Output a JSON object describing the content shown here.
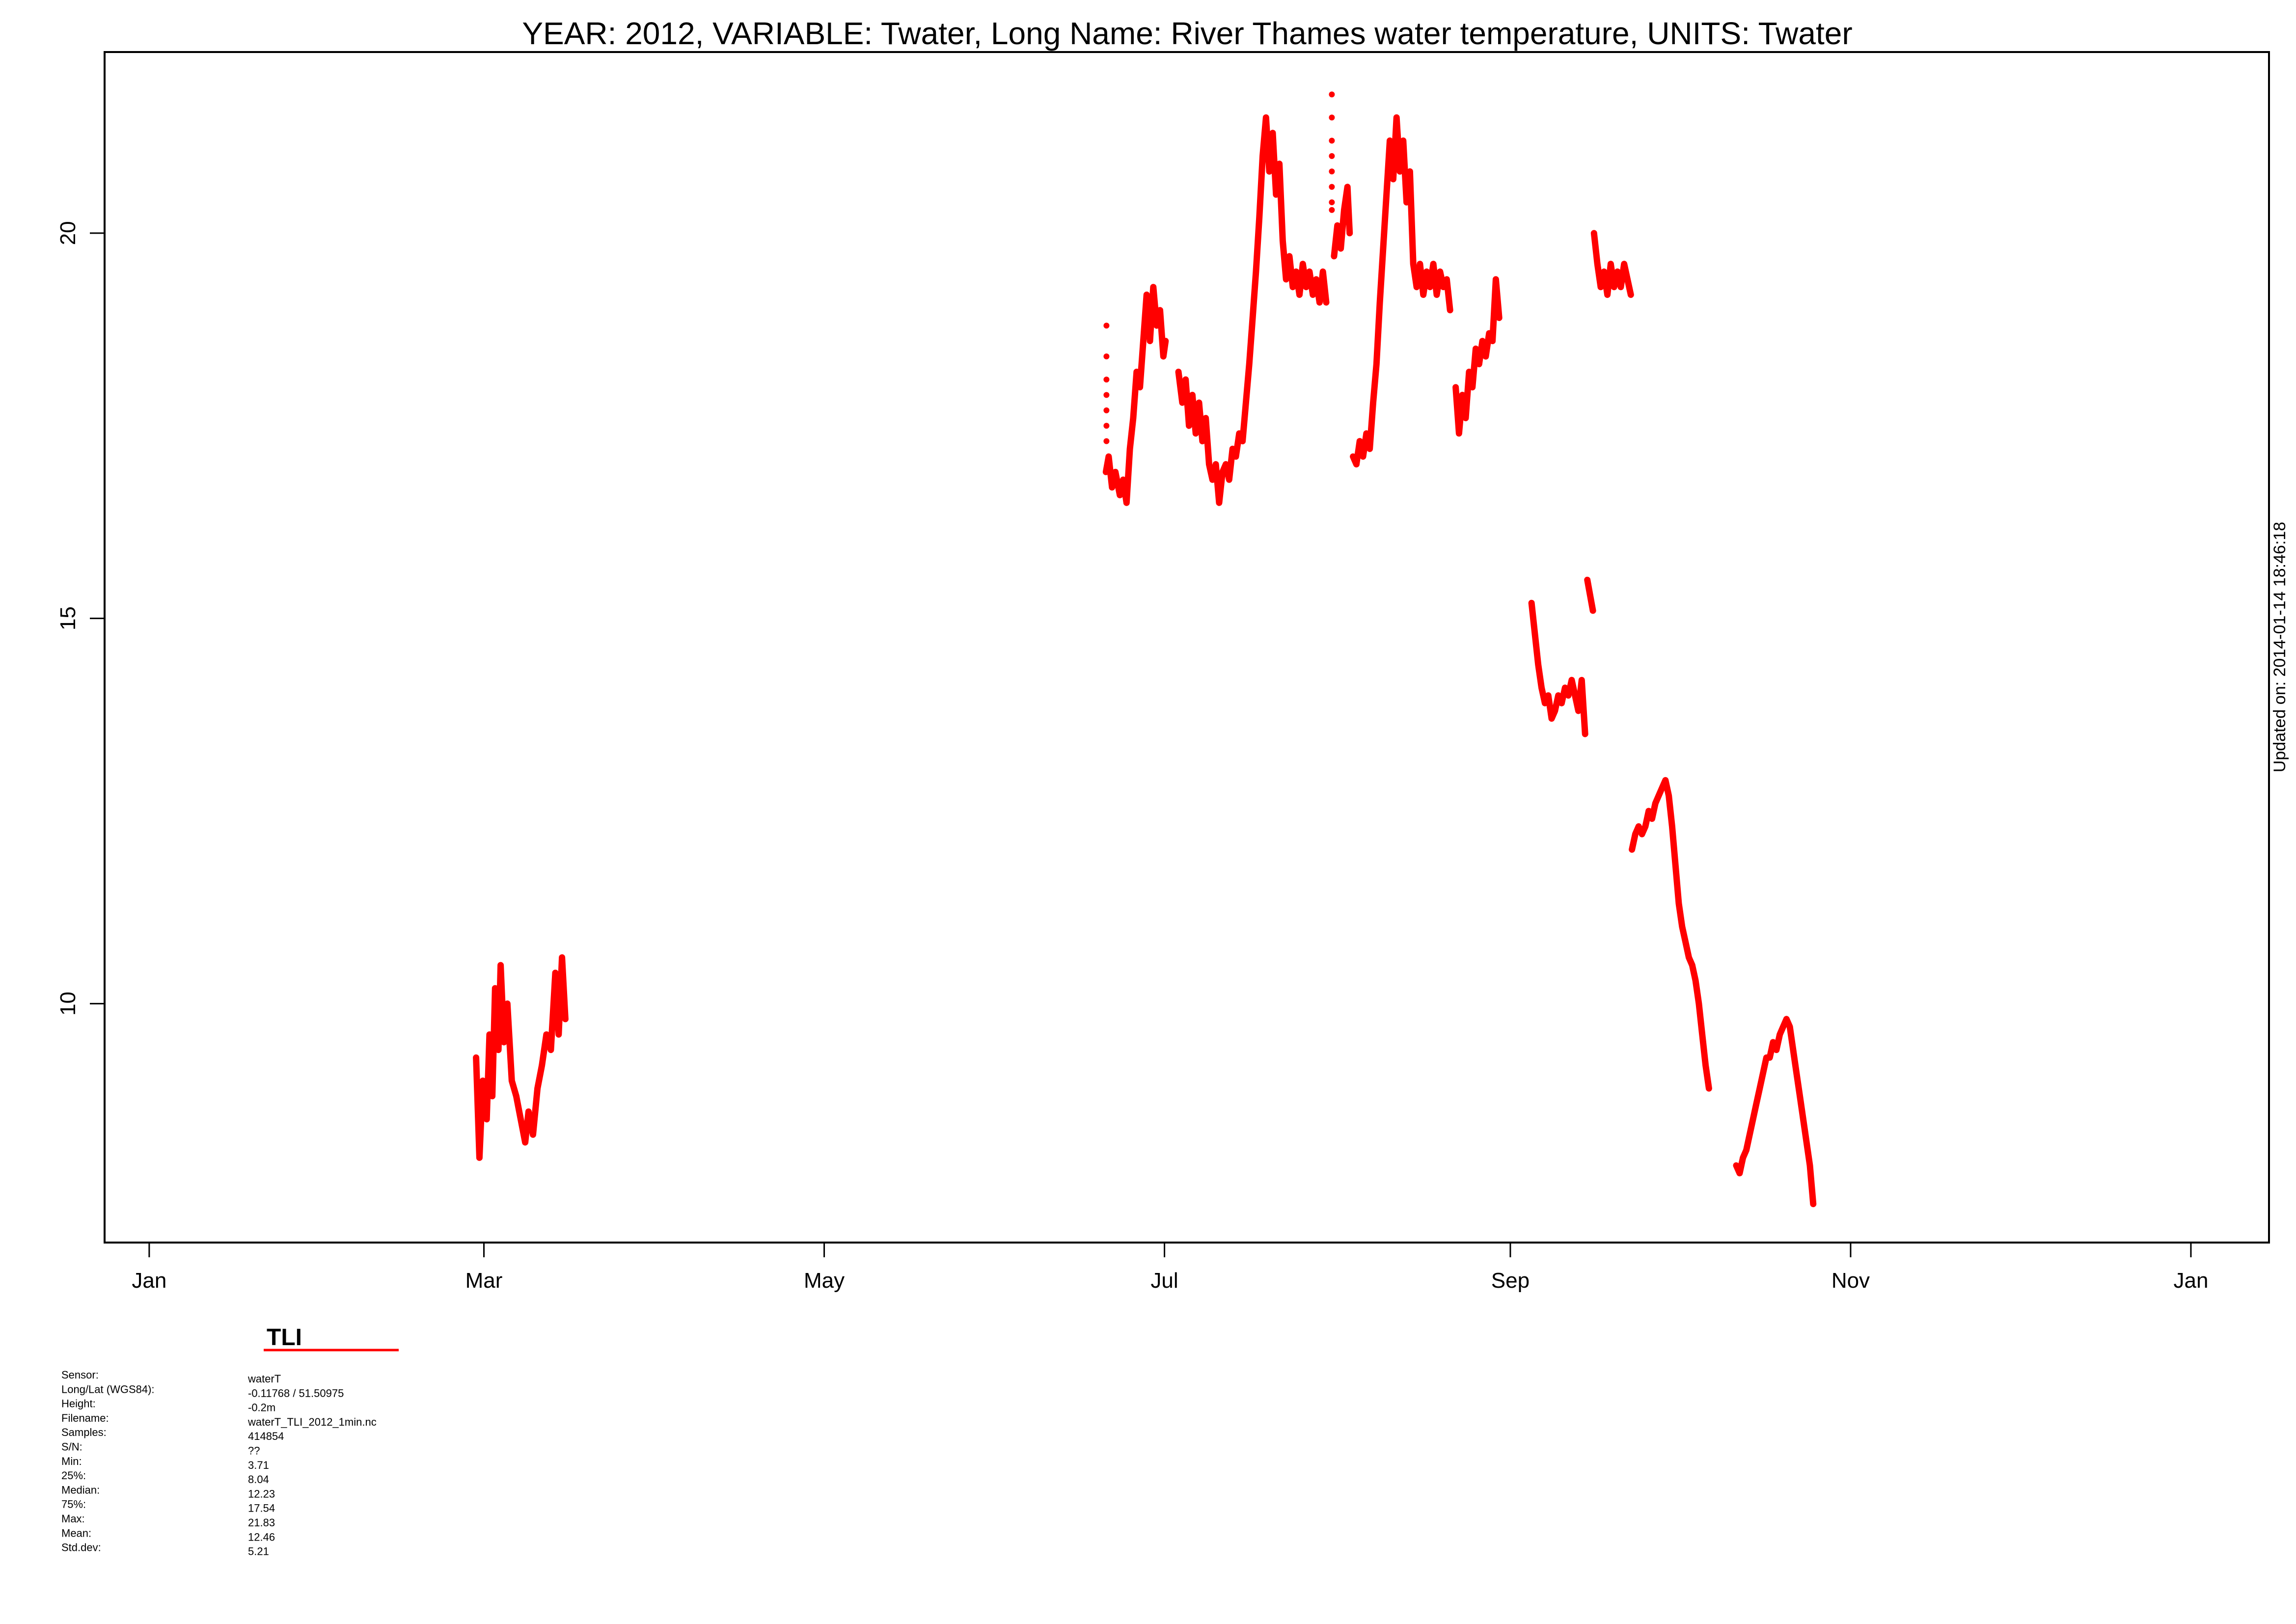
{
  "chart_data": {
    "type": "scatter",
    "title": "YEAR: 2012, VARIABLE: Twater, Long Name: River  Thames  water  temperature, UNITS: Twater",
    "xlabel": "",
    "ylabel": "",
    "updated_note": "Updated on: 2014-01-14 18:46:18",
    "xlim": [
      -8,
      380
    ],
    "ylim": [
      6.9,
      22.35
    ],
    "x_ticks": [
      {
        "day": 0,
        "label": "Jan"
      },
      {
        "day": 60,
        "label": "Mar"
      },
      {
        "day": 121,
        "label": "May"
      },
      {
        "day": 182,
        "label": "Jul"
      },
      {
        "day": 244,
        "label": "Sep"
      },
      {
        "day": 305,
        "label": "Nov"
      },
      {
        "day": 366,
        "label": "Jan"
      }
    ],
    "y_ticks": [
      {
        "value": 10,
        "label": "10"
      },
      {
        "value": 15,
        "label": "15"
      },
      {
        "value": 20,
        "label": "20"
      }
    ],
    "grid": false,
    "color": "#ff0000",
    "series": [
      {
        "name": "TLI",
        "segments": [
          [
            [
              58.6,
              9.3
            ],
            [
              59.2,
              8.0
            ],
            [
              59.8,
              9.0
            ],
            [
              60.5,
              8.5
            ],
            [
              61,
              9.6
            ],
            [
              61.5,
              8.8
            ],
            [
              62,
              10.2
            ],
            [
              62.6,
              9.4
            ],
            [
              63,
              10.5
            ],
            [
              63.6,
              9.5
            ],
            [
              64.2,
              10.0
            ],
            [
              65,
              9.0
            ],
            [
              65.8,
              8.8
            ],
            [
              66.6,
              8.5
            ],
            [
              67.4,
              8.2
            ],
            [
              68,
              8.6
            ],
            [
              68.8,
              8.3
            ],
            [
              69.6,
              8.9
            ],
            [
              70.4,
              9.2
            ],
            [
              71.2,
              9.6
            ],
            [
              72,
              9.4
            ],
            [
              72.8,
              10.4
            ],
            [
              73.4,
              9.6
            ],
            [
              74,
              10.6
            ],
            [
              74.6,
              9.8
            ]
          ],
          [
            [
              171.5,
              16.9
            ],
            [
              172,
              17.1
            ],
            [
              172.6,
              16.7
            ],
            [
              173.2,
              16.9
            ],
            [
              174,
              16.6
            ],
            [
              174.6,
              16.8
            ],
            [
              175.2,
              16.5
            ],
            [
              175.8,
              17.2
            ],
            [
              176.4,
              17.6
            ],
            [
              177,
              18.2
            ],
            [
              177.6,
              18.0
            ],
            [
              178.2,
              18.6
            ],
            [
              178.8,
              19.2
            ],
            [
              179.4,
              18.6
            ],
            [
              180,
              19.3
            ],
            [
              180.6,
              18.8
            ],
            [
              181.2,
              19.0
            ],
            [
              181.8,
              18.4
            ],
            [
              182.2,
              18.6
            ]
          ],
          [
            [
              184.5,
              18.2
            ],
            [
              185.2,
              17.8
            ],
            [
              185.8,
              18.1
            ],
            [
              186.4,
              17.5
            ],
            [
              187,
              17.9
            ],
            [
              187.6,
              17.4
            ],
            [
              188.2,
              17.8
            ],
            [
              188.8,
              17.3
            ],
            [
              189.4,
              17.6
            ],
            [
              190,
              17.0
            ],
            [
              190.6,
              16.8
            ],
            [
              191.2,
              17.0
            ],
            [
              191.8,
              16.5
            ],
            [
              192.4,
              16.9
            ],
            [
              193,
              17.0
            ],
            [
              193.6,
              16.8
            ],
            [
              194.2,
              17.2
            ],
            [
              194.8,
              17.1
            ],
            [
              195.4,
              17.4
            ],
            [
              196,
              17.3
            ],
            [
              196.6,
              17.8
            ],
            [
              197.2,
              18.3
            ],
            [
              197.8,
              18.9
            ],
            [
              198.4,
              19.5
            ],
            [
              199,
              20.2
            ],
            [
              199.6,
              21.0
            ],
            [
              200.2,
              21.5
            ],
            [
              200.8,
              20.8
            ],
            [
              201.4,
              21.3
            ],
            [
              202,
              20.5
            ],
            [
              202.6,
              20.9
            ],
            [
              203.2,
              19.9
            ],
            [
              203.8,
              19.4
            ],
            [
              204.4,
              19.7
            ],
            [
              205,
              19.3
            ],
            [
              205.6,
              19.5
            ],
            [
              206.2,
              19.2
            ],
            [
              206.8,
              19.6
            ],
            [
              207.4,
              19.3
            ],
            [
              208,
              19.5
            ],
            [
              208.6,
              19.2
            ],
            [
              209.2,
              19.4
            ],
            [
              209.8,
              19.1
            ],
            [
              210.4,
              19.5
            ],
            [
              211,
              19.1
            ]
          ],
          [
            [
              212.4,
              19.7
            ],
            [
              213,
              20.1
            ],
            [
              213.6,
              19.8
            ],
            [
              214.2,
              20.3
            ],
            [
              214.8,
              20.6
            ],
            [
              215.2,
              20.0
            ]
          ],
          [
            [
              215.8,
              17.1
            ],
            [
              216.4,
              17.0
            ],
            [
              217,
              17.3
            ],
            [
              217.6,
              17.1
            ],
            [
              218.2,
              17.4
            ],
            [
              218.8,
              17.2
            ],
            [
              219.4,
              17.8
            ],
            [
              220,
              18.3
            ],
            [
              220.6,
              19.1
            ],
            [
              221.2,
              19.8
            ],
            [
              221.8,
              20.5
            ],
            [
              222.4,
              21.2
            ],
            [
              223,
              20.7
            ],
            [
              223.6,
              21.5
            ],
            [
              224.2,
              20.8
            ],
            [
              224.8,
              21.2
            ],
            [
              225.4,
              20.4
            ],
            [
              226,
              20.8
            ],
            [
              226.6,
              19.6
            ],
            [
              227.2,
              19.3
            ],
            [
              227.8,
              19.6
            ],
            [
              228.4,
              19.2
            ],
            [
              229,
              19.5
            ],
            [
              229.6,
              19.3
            ],
            [
              230.2,
              19.6
            ],
            [
              230.8,
              19.2
            ],
            [
              231.4,
              19.5
            ],
            [
              232,
              19.3
            ],
            [
              232.6,
              19.4
            ],
            [
              233.2,
              19.0
            ]
          ],
          [
            [
              234.2,
              18.0
            ],
            [
              234.8,
              17.4
            ],
            [
              235.4,
              17.9
            ],
            [
              236,
              17.6
            ],
            [
              236.6,
              18.2
            ],
            [
              237.2,
              18.0
            ],
            [
              237.8,
              18.5
            ],
            [
              238.4,
              18.3
            ],
            [
              239,
              18.6
            ],
            [
              239.6,
              18.4
            ],
            [
              240.2,
              18.7
            ],
            [
              240.8,
              18.6
            ],
            [
              241.4,
              19.4
            ],
            [
              242,
              18.9
            ]
          ],
          [
            [
              247.8,
              15.2
            ],
            [
              248.4,
              14.8
            ],
            [
              249,
              14.4
            ],
            [
              249.6,
              14.1
            ],
            [
              250.2,
              13.9
            ],
            [
              250.8,
              14.0
            ],
            [
              251.4,
              13.7
            ],
            [
              252,
              13.8
            ],
            [
              252.6,
              14.0
            ],
            [
              253.2,
              13.9
            ],
            [
              253.8,
              14.1
            ],
            [
              254.4,
              14.0
            ],
            [
              255,
              14.2
            ],
            [
              255.6,
              14.0
            ],
            [
              256.2,
              13.8
            ],
            [
              256.8,
              14.2
            ],
            [
              257.4,
              13.5
            ]
          ],
          [
            [
              257.8,
              15.5
            ],
            [
              258.3,
              15.3
            ],
            [
              258.8,
              15.1
            ]
          ],
          [
            [
              259.0,
              20.0
            ],
            [
              259.6,
              19.6
            ],
            [
              260.2,
              19.3
            ],
            [
              260.8,
              19.5
            ],
            [
              261.4,
              19.2
            ],
            [
              262,
              19.6
            ],
            [
              262.6,
              19.3
            ],
            [
              263.2,
              19.5
            ],
            [
              263.8,
              19.3
            ],
            [
              264.4,
              19.6
            ],
            [
              265,
              19.4
            ],
            [
              265.6,
              19.2
            ]
          ],
          [
            [
              265.8,
              12.0
            ],
            [
              266.4,
              12.2
            ],
            [
              267,
              12.3
            ],
            [
              267.6,
              12.2
            ],
            [
              268.2,
              12.3
            ],
            [
              268.8,
              12.5
            ],
            [
              269.4,
              12.4
            ],
            [
              270,
              12.6
            ],
            [
              270.6,
              12.7
            ],
            [
              271.2,
              12.8
            ],
            [
              271.8,
              12.9
            ],
            [
              272.4,
              12.7
            ],
            [
              273,
              12.3
            ],
            [
              273.6,
              11.8
            ],
            [
              274.2,
              11.3
            ],
            [
              274.8,
              11.0
            ],
            [
              275.4,
              10.8
            ],
            [
              276,
              10.6
            ],
            [
              276.6,
              10.5
            ],
            [
              277.2,
              10.3
            ],
            [
              277.8,
              10.0
            ],
            [
              278.4,
              9.6
            ],
            [
              279,
              9.2
            ],
            [
              279.6,
              8.9
            ]
          ],
          [
            [
              284.5,
              7.9
            ],
            [
              285.1,
              7.8
            ],
            [
              285.7,
              8.0
            ],
            [
              286.3,
              8.1
            ],
            [
              286.9,
              8.3
            ],
            [
              287.5,
              8.5
            ],
            [
              288.1,
              8.7
            ],
            [
              288.7,
              8.9
            ],
            [
              289.3,
              9.1
            ],
            [
              289.9,
              9.3
            ],
            [
              290.5,
              9.3
            ],
            [
              291.1,
              9.5
            ],
            [
              291.7,
              9.4
            ],
            [
              292.3,
              9.6
            ],
            [
              292.9,
              9.7
            ],
            [
              293.5,
              9.8
            ],
            [
              294.1,
              9.7
            ],
            [
              294.7,
              9.4
            ],
            [
              295.3,
              9.1
            ],
            [
              295.9,
              8.8
            ],
            [
              296.5,
              8.5
            ],
            [
              297.1,
              8.2
            ],
            [
              297.7,
              7.9
            ],
            [
              298.3,
              7.4
            ]
          ]
        ],
        "sparse_points": [
          [
            171.6,
            18.8
          ],
          [
            171.6,
            18.4
          ],
          [
            171.6,
            18.1
          ],
          [
            171.6,
            17.9
          ],
          [
            171.6,
            17.7
          ],
          [
            171.6,
            17.5
          ],
          [
            171.6,
            17.3
          ],
          [
            212.0,
            21.8
          ],
          [
            212.0,
            21.5
          ],
          [
            212.0,
            21.2
          ],
          [
            212.0,
            21.0
          ],
          [
            212.0,
            20.8
          ],
          [
            212.0,
            20.6
          ],
          [
            212.0,
            20.4
          ],
          [
            212.0,
            20.3
          ]
        ]
      }
    ]
  },
  "legend": {
    "station": "TLI",
    "line_color": "#ff0000"
  },
  "info": {
    "labels": [
      "Sensor:",
      "Long/Lat (WGS84):",
      "Height:",
      "Filename:",
      "Samples:",
      "S/N:",
      "Min:",
      "25%:",
      "Median:",
      "75%:",
      "Max:",
      "Mean:",
      "Std.dev:"
    ],
    "values": [
      "waterT",
      "-0.11768 / 51.50975",
      "-0.2m",
      "waterT_TLI_2012_1min.nc",
      "414854",
      "??",
      "3.71",
      "8.04",
      "12.23",
      "17.54",
      "21.83",
      "12.46",
      "5.21"
    ]
  }
}
